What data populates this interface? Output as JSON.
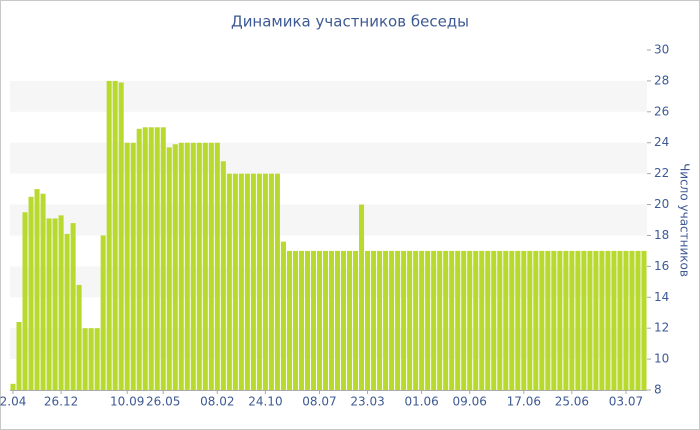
{
  "chart_data": {
    "type": "bar",
    "title": "Динамика участников беседы",
    "y_label": "Число участников",
    "color": "#b8da2e",
    "grid_bands": true,
    "categories": [
      "2.04",
      null,
      null,
      null,
      null,
      null,
      null,
      null,
      "26.12",
      null,
      null,
      null,
      null,
      null,
      null,
      null,
      null,
      null,
      null,
      "10.09",
      null,
      null,
      null,
      null,
      null,
      "26.05",
      null,
      null,
      null,
      null,
      null,
      null,
      null,
      null,
      "08.02",
      null,
      null,
      null,
      null,
      null,
      null,
      null,
      "24.10",
      null,
      null,
      null,
      null,
      null,
      null,
      null,
      null,
      "08.07",
      null,
      null,
      null,
      null,
      null,
      null,
      null,
      "23.03",
      null,
      null,
      null,
      null,
      null,
      null,
      null,
      null,
      "01.06",
      null,
      null,
      null,
      null,
      null,
      null,
      null,
      "09.06",
      null,
      null,
      null,
      null,
      null,
      null,
      null,
      null,
      "17.06",
      null,
      null,
      null,
      null,
      null,
      null,
      null,
      "25.06",
      null,
      null,
      null,
      null,
      null,
      null,
      null,
      null,
      "03.07",
      null,
      null,
      null
    ],
    "values": [
      8.4,
      12.4,
      19.5,
      20.5,
      21,
      20.7,
      19.1,
      19.1,
      19.3,
      18.1,
      18.8,
      14.8,
      12,
      12,
      12,
      18,
      28,
      28,
      27.9,
      24,
      24,
      24.9,
      25,
      25,
      25,
      25,
      23.7,
      23.9,
      24,
      24,
      24,
      24,
      24,
      24,
      24,
      22.8,
      22,
      22,
      22,
      22,
      22,
      22,
      22,
      22,
      22,
      17.6,
      17,
      17,
      17,
      17,
      17,
      17,
      17,
      17,
      17,
      17,
      17,
      17,
      20,
      17,
      17,
      17,
      17,
      17,
      17,
      17,
      17,
      17,
      17,
      17,
      17,
      17,
      17,
      17,
      17,
      17,
      17,
      17,
      17,
      17,
      17,
      17,
      17,
      17,
      17,
      17,
      17,
      17,
      17,
      17,
      17,
      17,
      17,
      17,
      17,
      17,
      17,
      17,
      17,
      17,
      17,
      17,
      17,
      17,
      17,
      17
    ],
    "ylim": [
      8,
      30
    ],
    "yticks": [
      8,
      10,
      12,
      14,
      16,
      18,
      20,
      22,
      24,
      26,
      28,
      30
    ]
  }
}
